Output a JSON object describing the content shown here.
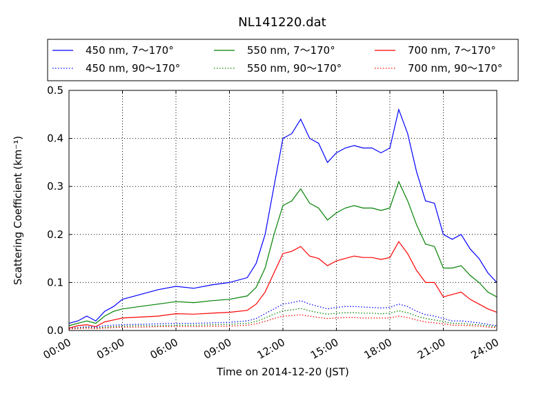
{
  "chart_data": {
    "type": "line",
    "title": "NL141220.dat",
    "xlabel": "Time on 2014-12-20 (JST)",
    "ylabel": "Scattering Coefficient (km⁻¹)",
    "xlim_hours": [
      0,
      24
    ],
    "ylim": [
      0,
      0.5
    ],
    "x_ticks": [
      "00:00",
      "03:00",
      "06:00",
      "09:00",
      "12:00",
      "15:00",
      "18:00",
      "21:00",
      "24:00"
    ],
    "y_ticks": [
      "0.0",
      "0.1",
      "0.2",
      "0.3",
      "0.4",
      "0.5"
    ],
    "grid": true,
    "legend_position": "above plot, 3 columns",
    "x_hours": [
      0,
      0.5,
      1,
      1.5,
      2,
      2.5,
      3,
      4,
      5,
      6,
      7,
      8,
      9,
      10,
      10.5,
      11,
      11.5,
      12,
      12.5,
      13,
      13.5,
      14,
      14.5,
      15,
      15.5,
      16,
      16.5,
      17,
      17.5,
      18,
      18.5,
      19,
      19.5,
      20,
      20.5,
      21,
      21.5,
      22,
      22.5,
      23,
      23.5,
      24
    ],
    "series": [
      {
        "name": "450 nm, 7～170°",
        "color": "#0000ff",
        "style": "solid",
        "values": [
          0.015,
          0.02,
          0.03,
          0.02,
          0.04,
          0.05,
          0.065,
          0.075,
          0.085,
          0.092,
          0.088,
          0.095,
          0.1,
          0.11,
          0.14,
          0.2,
          0.3,
          0.4,
          0.41,
          0.44,
          0.4,
          0.39,
          0.35,
          0.37,
          0.38,
          0.385,
          0.38,
          0.38,
          0.37,
          0.38,
          0.46,
          0.41,
          0.33,
          0.27,
          0.265,
          0.2,
          0.19,
          0.2,
          0.17,
          0.15,
          0.12,
          0.1
        ]
      },
      {
        "name": "450 nm, 90～170°",
        "color": "#0000ff",
        "style": "dotted",
        "values": [
          0.005,
          0.006,
          0.008,
          0.007,
          0.01,
          0.011,
          0.012,
          0.013,
          0.014,
          0.015,
          0.015,
          0.016,
          0.017,
          0.02,
          0.025,
          0.035,
          0.045,
          0.055,
          0.058,
          0.062,
          0.055,
          0.05,
          0.045,
          0.048,
          0.05,
          0.05,
          0.049,
          0.048,
          0.047,
          0.048,
          0.055,
          0.05,
          0.04,
          0.033,
          0.03,
          0.025,
          0.02,
          0.02,
          0.018,
          0.016,
          0.013,
          0.01
        ]
      },
      {
        "name": "550 nm, 7～170°",
        "color": "#008000",
        "style": "solid",
        "values": [
          0.01,
          0.015,
          0.02,
          0.015,
          0.03,
          0.04,
          0.045,
          0.05,
          0.055,
          0.06,
          0.058,
          0.062,
          0.065,
          0.072,
          0.09,
          0.13,
          0.2,
          0.26,
          0.27,
          0.295,
          0.265,
          0.255,
          0.23,
          0.245,
          0.255,
          0.26,
          0.255,
          0.255,
          0.25,
          0.255,
          0.31,
          0.27,
          0.22,
          0.18,
          0.175,
          0.13,
          0.13,
          0.135,
          0.115,
          0.1,
          0.08,
          0.07
        ]
      },
      {
        "name": "550 nm, 90～170°",
        "color": "#008000",
        "style": "dotted",
        "values": [
          0.004,
          0.005,
          0.006,
          0.005,
          0.007,
          0.008,
          0.009,
          0.01,
          0.01,
          0.011,
          0.011,
          0.012,
          0.013,
          0.015,
          0.019,
          0.026,
          0.034,
          0.041,
          0.043,
          0.046,
          0.041,
          0.037,
          0.034,
          0.036,
          0.037,
          0.037,
          0.036,
          0.036,
          0.035,
          0.036,
          0.041,
          0.037,
          0.03,
          0.025,
          0.022,
          0.019,
          0.015,
          0.015,
          0.013,
          0.012,
          0.01,
          0.008
        ]
      },
      {
        "name": "700 nm, 7～170°",
        "color": "#ff0000",
        "style": "solid",
        "values": [
          0.005,
          0.01,
          0.012,
          0.008,
          0.018,
          0.022,
          0.026,
          0.028,
          0.03,
          0.035,
          0.034,
          0.036,
          0.038,
          0.042,
          0.055,
          0.08,
          0.12,
          0.16,
          0.165,
          0.175,
          0.155,
          0.15,
          0.135,
          0.145,
          0.15,
          0.155,
          0.152,
          0.152,
          0.148,
          0.152,
          0.185,
          0.16,
          0.125,
          0.1,
          0.1,
          0.07,
          0.075,
          0.08,
          0.065,
          0.055,
          0.045,
          0.038
        ]
      },
      {
        "name": "700 nm, 90～170°",
        "color": "#ff0000",
        "style": "dotted",
        "values": [
          0.003,
          0.004,
          0.005,
          0.004,
          0.005,
          0.006,
          0.007,
          0.007,
          0.008,
          0.008,
          0.008,
          0.009,
          0.009,
          0.011,
          0.014,
          0.019,
          0.025,
          0.03,
          0.031,
          0.033,
          0.03,
          0.027,
          0.025,
          0.026,
          0.027,
          0.027,
          0.026,
          0.026,
          0.026,
          0.026,
          0.03,
          0.027,
          0.022,
          0.018,
          0.016,
          0.014,
          0.011,
          0.011,
          0.01,
          0.009,
          0.007,
          0.006
        ]
      }
    ]
  }
}
